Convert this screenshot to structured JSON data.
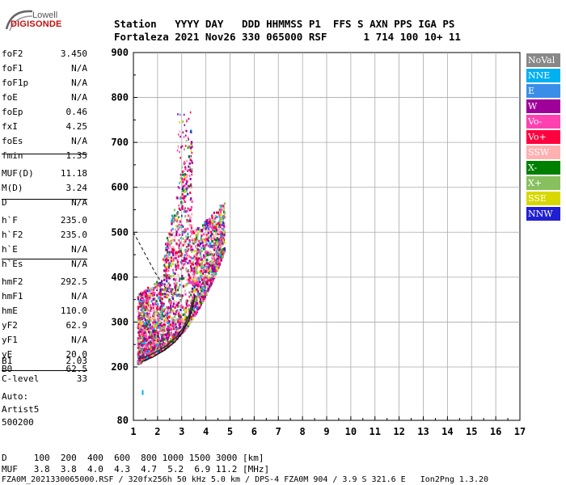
{
  "logo": {
    "line1": "Lowell",
    "line2": "DIGISONDE"
  },
  "header": {
    "line1": "Station   YYYY DAY   DDD HHMMSS P1  FFS S AXN PPS IGA PS",
    "line2": "Fortaleza 2021 Nov26 330 065000 RSF      1 714 100 10+ 11"
  },
  "params": [
    {
      "key": "foF2",
      "value": "3.450"
    },
    {
      "key": "foF1",
      "value": "N/A"
    },
    {
      "key": "foF1p",
      "value": "N/A"
    },
    {
      "key": "foE",
      "value": "N/A"
    },
    {
      "key": "foEp",
      "value": "0.46"
    },
    {
      "key": "fxI",
      "value": "4.25"
    },
    {
      "key": "foEs",
      "value": "N/A"
    },
    {
      "key": "fmin",
      "value": "1.35"
    },
    {
      "key": "MUF(D)",
      "value": "11.18"
    },
    {
      "key": "M(D)",
      "value": "3.24"
    },
    {
      "key": "D",
      "value": "N/A"
    },
    {
      "key": "h`F",
      "value": "235.0"
    },
    {
      "key": "h`F2",
      "value": "235.0"
    },
    {
      "key": "h`E",
      "value": "N/A"
    },
    {
      "key": "h`Es",
      "value": "N/A"
    },
    {
      "key": "hmF2",
      "value": "292.5"
    },
    {
      "key": "hmF1",
      "value": "N/A"
    },
    {
      "key": "hmE",
      "value": "110.0"
    },
    {
      "key": "yF2",
      "value": "62.9"
    },
    {
      "key": "yF1",
      "value": "N/A"
    },
    {
      "key": "yE",
      "value": "20.0"
    },
    {
      "key": "B0",
      "value": "62.5"
    },
    {
      "key": "B1",
      "value": "2.03"
    },
    {
      "key": "C-level",
      "value": "33"
    }
  ],
  "notes": [
    "Auto:",
    "Artist5",
    "500200"
  ],
  "legend": [
    {
      "label": "NoVal",
      "color": "#888888"
    },
    {
      "label": "NNE",
      "color": "#00b0f0"
    },
    {
      "label": "E",
      "color": "#3a8ee8"
    },
    {
      "label": "W",
      "color": "#a0009a"
    },
    {
      "label": "Vo-",
      "color": "#ff40b0"
    },
    {
      "label": "Vo+",
      "color": "#ff0040"
    },
    {
      "label": "SSW",
      "color": "#ffb0b0"
    },
    {
      "label": "X-",
      "color": "#008000"
    },
    {
      "label": "X+",
      "color": "#88c060"
    },
    {
      "label": "SSE",
      "color": "#d8d800"
    },
    {
      "label": "NNW",
      "color": "#2020d0"
    }
  ],
  "footer": {
    "line1": "D     100  200  400  600  800 1000 1500 3000 [km]",
    "line2": "MUF   3.8  3.8  4.0  4.3  4.7  5.2  6.9 11.2 [MHz]",
    "line3": "FZA0M_2021330065000.RSF / 320fx256h 50 kHz 5.0 km / DPS-4 FZA0M 904 / 3.9 S 321.6 E   Ion2Png 1.3.20"
  },
  "chart_data": {
    "type": "scatter",
    "x_ticks": [
      "1",
      "2",
      "3",
      "4",
      "5",
      "6",
      "7",
      "8",
      "9",
      "10",
      "11",
      "12",
      "13",
      "14",
      "15",
      "16",
      "17"
    ],
    "y_ticks": [
      "900",
      "800",
      "700",
      "600",
      "500",
      "400",
      "300",
      "200",
      "80"
    ],
    "xlim": [
      1,
      17
    ],
    "ylim": [
      80,
      900
    ],
    "grid": true,
    "legend_position": "right",
    "profile_curve": [
      [
        1.2,
        218
      ],
      [
        1.6,
        225
      ],
      [
        2.0,
        235
      ],
      [
        2.4,
        248
      ],
      [
        2.8,
        268
      ],
      [
        3.1,
        290
      ],
      [
        3.3,
        315
      ],
      [
        3.45,
        350
      ]
    ],
    "trace_o_mode": [
      [
        1.35,
        212
      ],
      [
        1.8,
        222
      ],
      [
        2.3,
        238
      ],
      [
        2.7,
        255
      ],
      [
        3.0,
        275
      ],
      [
        3.3,
        305
      ],
      [
        3.45,
        335
      ],
      [
        3.55,
        360
      ]
    ],
    "extrapolation_dashed": [
      [
        1.0,
        500
      ],
      [
        1.3,
        470
      ],
      [
        1.6,
        440
      ],
      [
        1.9,
        410
      ],
      [
        2.2,
        385
      ],
      [
        2.5,
        365
      ]
    ]
  }
}
